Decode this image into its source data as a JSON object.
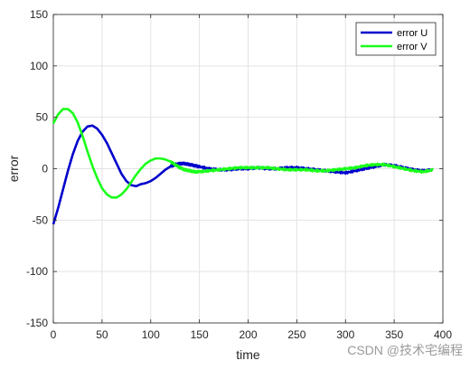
{
  "chart_data": {
    "type": "line",
    "title": "",
    "xlabel": "time",
    "ylabel": "error",
    "xlim": [
      0,
      400
    ],
    "ylim": [
      -150,
      150
    ],
    "x_ticks": [
      0,
      50,
      100,
      150,
      200,
      250,
      300,
      350,
      400
    ],
    "y_ticks": [
      -150,
      -100,
      -50,
      0,
      50,
      100,
      150
    ],
    "grid": true,
    "legend_position": "top-right",
    "series": [
      {
        "name": "error U",
        "color": "#0000cc",
        "x": [
          0,
          5,
          10,
          15,
          20,
          25,
          30,
          35,
          40,
          45,
          50,
          55,
          60,
          65,
          70,
          75,
          80,
          85,
          90,
          95,
          100,
          105,
          110,
          115,
          120,
          125,
          130,
          135,
          140,
          145,
          150,
          160,
          170,
          180,
          190,
          200,
          210,
          220,
          230,
          240,
          250,
          260,
          270,
          280,
          290,
          300,
          310,
          320,
          330,
          340,
          350,
          360,
          370,
          380,
          390
        ],
        "y": [
          -54,
          -38,
          -20,
          -2,
          14,
          27,
          36,
          41,
          42,
          39,
          33,
          25,
          15,
          5,
          -5,
          -12,
          -16,
          -17,
          -15,
          -14,
          -12,
          -9,
          -5,
          -1,
          2,
          4,
          5,
          5,
          4,
          3,
          2,
          0,
          -1,
          -1,
          0,
          0,
          1,
          0,
          0,
          1,
          1,
          0,
          -1,
          -2,
          -3,
          -4,
          -2,
          0,
          2,
          4,
          3,
          1,
          -1,
          -2,
          -1
        ]
      },
      {
        "name": "error V",
        "color": "#1aff1a",
        "x": [
          0,
          5,
          10,
          15,
          20,
          25,
          30,
          35,
          40,
          45,
          50,
          55,
          60,
          65,
          70,
          75,
          80,
          85,
          90,
          95,
          100,
          105,
          110,
          115,
          120,
          125,
          130,
          135,
          140,
          145,
          150,
          160,
          170,
          180,
          190,
          200,
          210,
          220,
          230,
          240,
          250,
          260,
          270,
          280,
          290,
          300,
          310,
          320,
          330,
          340,
          350,
          360,
          370,
          380,
          390
        ],
        "y": [
          44,
          53,
          58,
          58,
          54,
          45,
          32,
          17,
          3,
          -9,
          -19,
          -25,
          -28,
          -28,
          -25,
          -20,
          -13,
          -6,
          0,
          5,
          8,
          10,
          10,
          9,
          7,
          4,
          1,
          -1,
          -2,
          -3,
          -3,
          -2,
          -1,
          0,
          1,
          1,
          1,
          1,
          0,
          -1,
          -1,
          -1,
          -2,
          -2,
          -1,
          0,
          1,
          3,
          4,
          4,
          2,
          0,
          -2,
          -3,
          -1
        ]
      }
    ]
  },
  "watermark": "CSDN @技术宅编程"
}
